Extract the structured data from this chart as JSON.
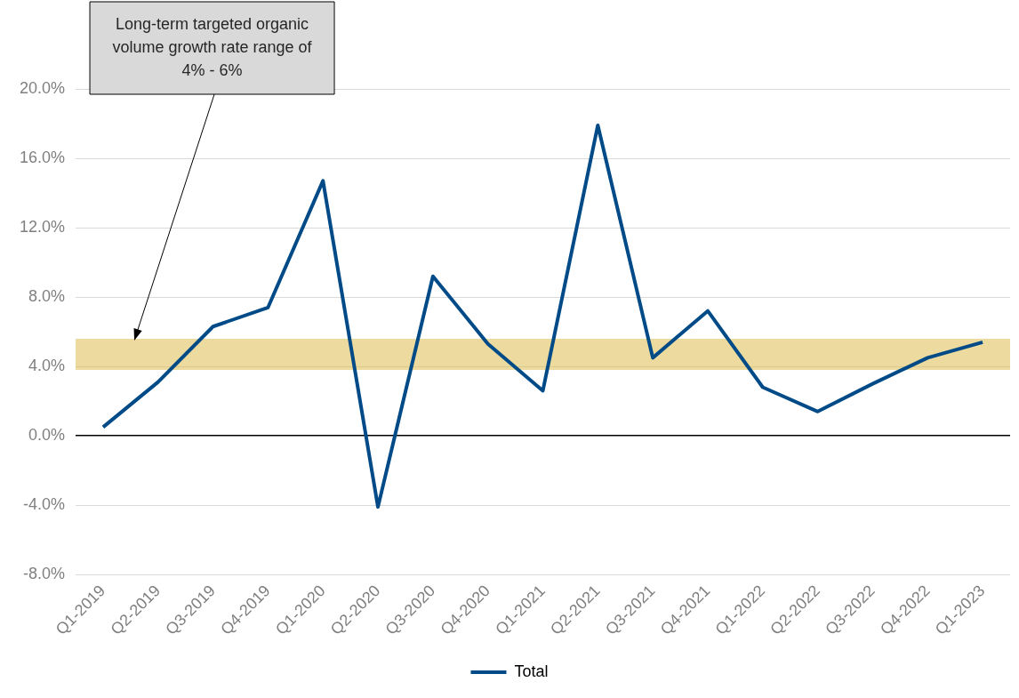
{
  "chart_data": {
    "type": "line",
    "categories": [
      "Q1-2019",
      "Q2-2019",
      "Q3-2019",
      "Q4-2019",
      "Q1-2020",
      "Q2-2020",
      "Q3-2020",
      "Q4-2020",
      "Q1-2021",
      "Q2-2021",
      "Q3-2021",
      "Q4-2021",
      "Q1-2022",
      "Q2-2022",
      "Q3-2022",
      "Q4-2022",
      "Q1-2023"
    ],
    "series": [
      {
        "name": "Total",
        "color": "#004b87",
        "values": [
          0.5,
          3.1,
          6.3,
          7.4,
          14.7,
          -4.1,
          9.2,
          5.3,
          2.6,
          17.9,
          4.5,
          7.2,
          2.8,
          1.4,
          3.0,
          4.5,
          5.4
        ]
      }
    ],
    "ylim": [
      -8,
      20
    ],
    "yticks": [
      {
        "value": -8,
        "label": "-8.0%"
      },
      {
        "value": -4,
        "label": "-4.0%"
      },
      {
        "value": 0,
        "label": "0.0%"
      },
      {
        "value": 4,
        "label": "4.0%"
      },
      {
        "value": 8,
        "label": "8.0%"
      },
      {
        "value": 12,
        "label": "12.0%"
      },
      {
        "value": 16,
        "label": "16.0%"
      },
      {
        "value": 20,
        "label": "20.0%"
      }
    ],
    "bands": [
      {
        "axis": "y",
        "from": 3.8,
        "to": 5.6,
        "label": "Long-term targeted organic volume growth rate range of 4% - 6%",
        "color": "#dcbc50"
      }
    ],
    "grid": "y",
    "legend": "bottom",
    "marker": "none",
    "line_style": "solid"
  }
}
